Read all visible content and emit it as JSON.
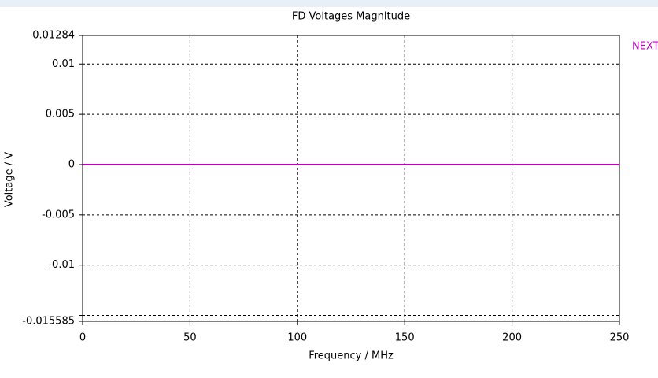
{
  "chart_data": {
    "type": "line",
    "title": "FD Voltages Magnitude",
    "x_label": "Frequency / MHz",
    "y_label": "Voltage / V",
    "x": [
      0,
      250
    ],
    "series": [
      {
        "name": "NEXT",
        "color": "#c000c0",
        "values": [
          0,
          0
        ]
      }
    ],
    "xlim": [
      0,
      250
    ],
    "xticks": [
      0,
      50,
      100,
      150,
      200,
      250
    ],
    "ylim": [
      -0.015585,
      0.01284
    ],
    "yticks": [
      -0.015585,
      {
        "value": -0.015,
        "label": null
      },
      -0.01,
      -0.005,
      0,
      0.005,
      0.01,
      0.01284
    ],
    "grid": true,
    "legend": "right"
  }
}
